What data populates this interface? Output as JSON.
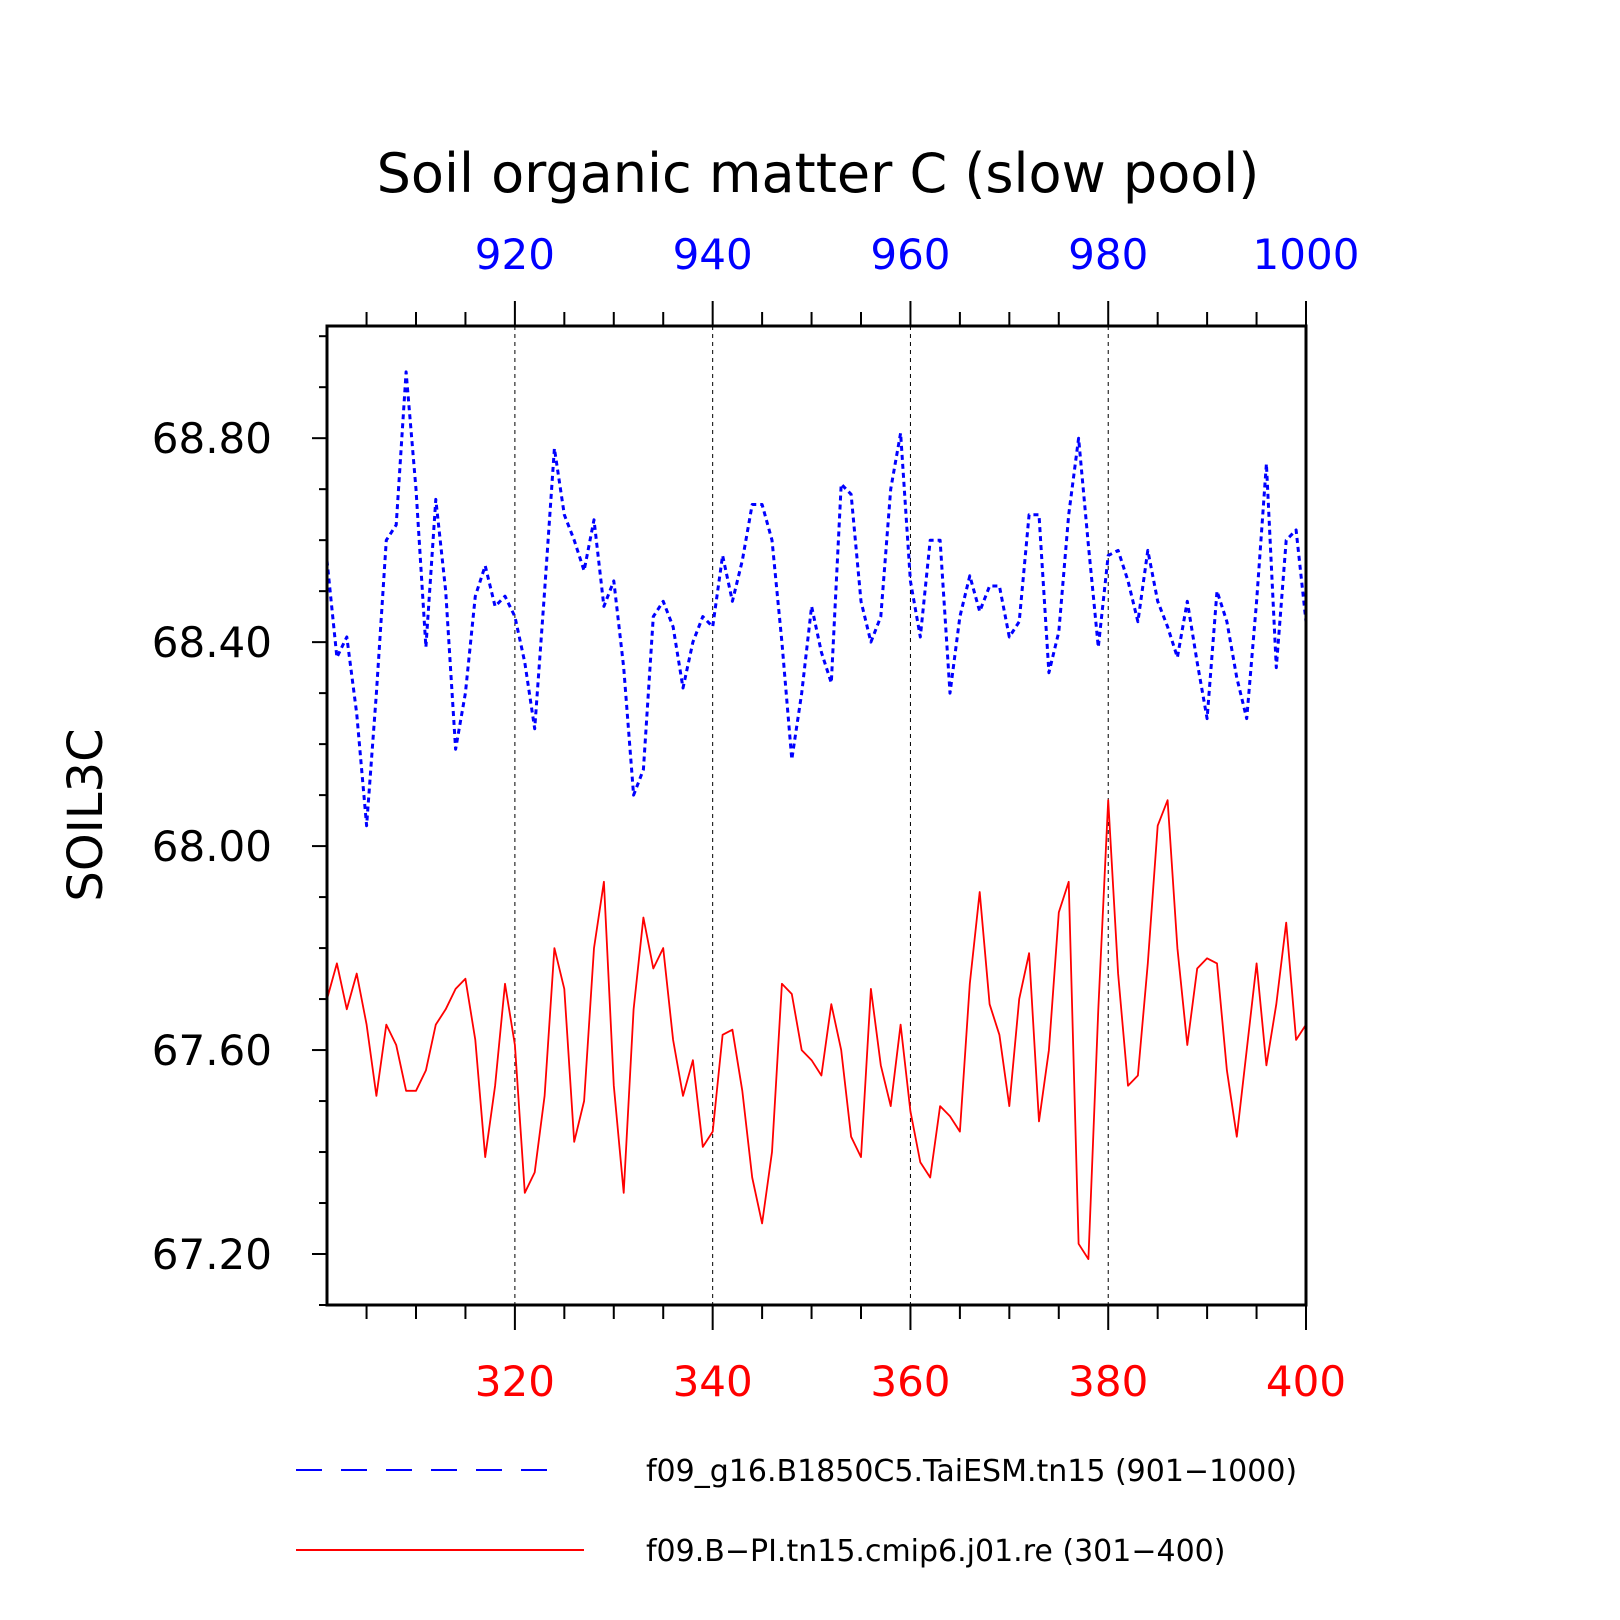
{
  "chart_data": {
    "type": "line",
    "title": "Soil organic matter C (slow pool)",
    "ylabel": "SOIL3C",
    "ylim": [
      67.1,
      69.02
    ],
    "yticks": [
      "67.20",
      "67.60",
      "68.00",
      "68.40",
      "68.80"
    ],
    "x_top": {
      "range": [
        901,
        1000
      ],
      "ticks": [
        "920",
        "940",
        "960",
        "980",
        "1000"
      ],
      "color": "#0000ff"
    },
    "x_bottom": {
      "range": [
        301,
        400
      ],
      "ticks": [
        "320",
        "340",
        "360",
        "380",
        "400"
      ],
      "color": "#ff0000"
    },
    "grid": "dotted vertical at major x ticks",
    "legend_position": "bottom",
    "series": [
      {
        "name": "f09_g16.B1850C5.TaiESM.tn15 (901−1000)",
        "axis": "top",
        "color": "#0000ff",
        "style": "dashed",
        "x_start": 901,
        "values": [
          68.56,
          68.37,
          68.41,
          68.26,
          68.04,
          68.3,
          68.6,
          68.63,
          68.93,
          68.7,
          68.39,
          68.68,
          68.5,
          68.19,
          68.3,
          68.49,
          68.55,
          68.47,
          68.49,
          68.45,
          68.36,
          68.23,
          68.5,
          68.78,
          68.65,
          68.6,
          68.54,
          68.64,
          68.47,
          68.52,
          68.35,
          68.1,
          68.15,
          68.45,
          68.48,
          68.43,
          68.31,
          68.4,
          68.45,
          68.43,
          68.57,
          68.48,
          68.56,
          68.67,
          68.67,
          68.6,
          68.4,
          68.17,
          68.3,
          68.47,
          68.38,
          68.32,
          68.71,
          68.69,
          68.48,
          68.4,
          68.45,
          68.7,
          68.81,
          68.52,
          68.41,
          68.6,
          68.6,
          68.3,
          68.45,
          68.53,
          68.46,
          68.51,
          68.51,
          68.41,
          68.44,
          68.65,
          68.65,
          68.34,
          68.42,
          68.65,
          68.8,
          68.59,
          68.39,
          68.57,
          68.58,
          68.52,
          68.44,
          68.58,
          68.48,
          68.43,
          68.37,
          68.48,
          68.36,
          68.25,
          68.5,
          68.44,
          68.33,
          68.25,
          68.48,
          68.75,
          68.35,
          68.6,
          68.62,
          68.44
        ]
      },
      {
        "name": "f09.B−PI.tn15.cmip6.j01.re (301−400)",
        "axis": "bottom",
        "color": "#ff0000",
        "style": "solid",
        "x_start": 301,
        "values": [
          67.7,
          67.77,
          67.68,
          67.75,
          67.65,
          67.51,
          67.65,
          67.61,
          67.52,
          67.52,
          67.56,
          67.65,
          67.68,
          67.72,
          67.74,
          67.62,
          67.39,
          67.53,
          67.73,
          67.61,
          67.32,
          67.36,
          67.51,
          67.8,
          67.72,
          67.42,
          67.5,
          67.8,
          67.93,
          67.53,
          67.32,
          67.68,
          67.86,
          67.76,
          67.8,
          67.62,
          67.51,
          67.58,
          67.41,
          67.44,
          67.63,
          67.64,
          67.52,
          67.35,
          67.26,
          67.4,
          67.73,
          67.71,
          67.6,
          67.58,
          67.55,
          67.69,
          67.6,
          67.43,
          67.39,
          67.72,
          67.57,
          67.49,
          67.65,
          67.48,
          67.38,
          67.35,
          67.49,
          67.47,
          67.44,
          67.73,
          67.91,
          67.69,
          67.63,
          67.49,
          67.7,
          67.79,
          67.46,
          67.6,
          67.87,
          67.93,
          67.22,
          67.19,
          67.68,
          68.09,
          67.75,
          67.53,
          67.55,
          67.77,
          68.04,
          68.09,
          67.8,
          67.61,
          67.76,
          67.78,
          67.77,
          67.56,
          67.43,
          67.6,
          67.77,
          67.57,
          67.69,
          67.85,
          67.62,
          67.65
        ]
      }
    ]
  }
}
